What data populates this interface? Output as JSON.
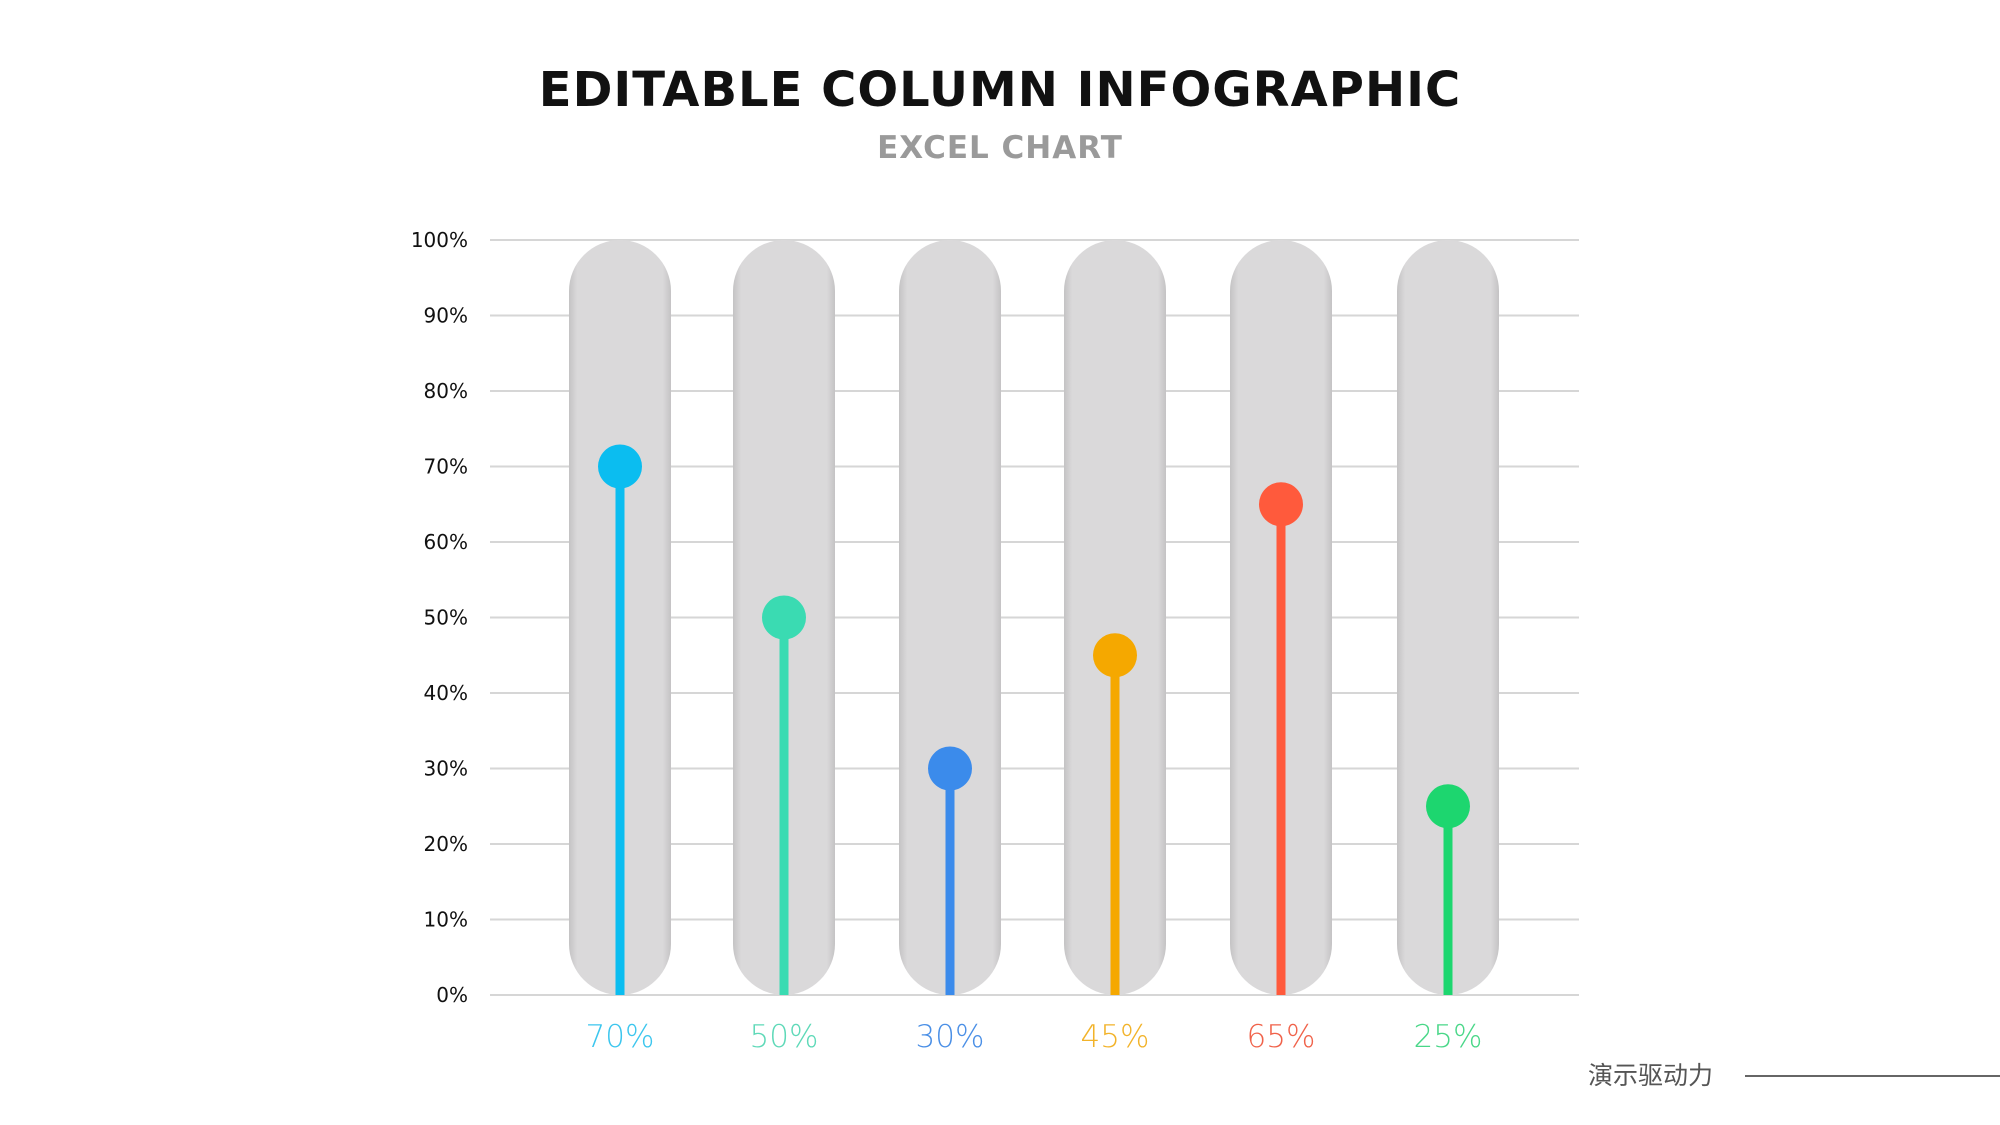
{
  "title": "EDITABLE COLUMN INFOGRAPHIC",
  "subtitle": "EXCEL CHART",
  "footer": {
    "text": "演示驱动力"
  },
  "chart_data": {
    "type": "bar",
    "style": "lollipop columns with rounded grey background pills",
    "categories": [
      "",
      "",
      "",
      "",
      "",
      ""
    ],
    "values": [
      70,
      50,
      30,
      45,
      65,
      25
    ],
    "data_labels": [
      "70%",
      "50%",
      "30%",
      "45%",
      "65%",
      "25%"
    ],
    "colors": [
      "#0BBDF0",
      "#3ADBB2",
      "#3B8BEB",
      "#F5A800",
      "#FF5A3C",
      "#1DD66F"
    ],
    "label_colors": [
      "#3CC6EE",
      "#5ED9B8",
      "#4A8FE6",
      "#F2B32A",
      "#F0624A",
      "#49D788"
    ],
    "ylim": [
      0,
      100
    ],
    "yticks": [
      "0%",
      "10%",
      "20%",
      "30%",
      "40%",
      "50%",
      "60%",
      "70%",
      "80%",
      "90%",
      "100%"
    ],
    "grid": true,
    "background_color": "#DAD9DA",
    "xlabel": "",
    "ylabel": ""
  }
}
